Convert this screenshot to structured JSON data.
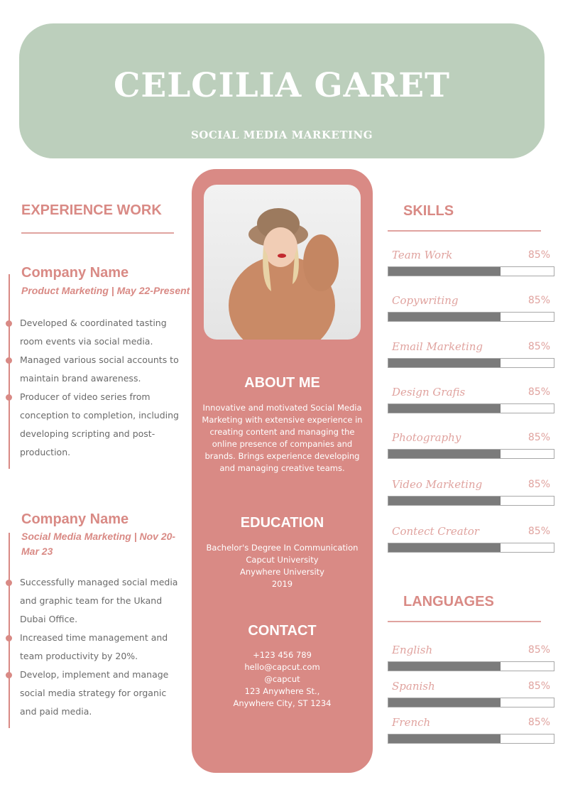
{
  "header": {
    "name": "CELCILIA GARET",
    "title": "SOCIAL MEDIA MARKETING"
  },
  "experience": {
    "heading": "EXPERIENCE WORK",
    "jobs": [
      {
        "company": "Company Name",
        "role": "Product Marketing | May 22-Present",
        "bullets": [
          "Developed & coordinated tasting room events via social media.",
          "Managed various social accounts to maintain brand awareness.",
          "Producer of video series from conception to completion, including developing scripting and post-production."
        ]
      },
      {
        "company": "Company Name",
        "role": "Social Media Marketing | Nov 20-Mar 23",
        "bullets": [
          "Successfully managed social media and graphic team for the Ukand Dubai Office.",
          "Increased time management and team productivity by 20%.",
          "Develop, implement and manage social media strategy for organic and paid media."
        ]
      }
    ]
  },
  "about": {
    "heading": "ABOUT ME",
    "text": "Innovative and motivated Social Media Marketing with extensive experience in creating content and managing the online presence of companies and brands. Brings experience developing and managing creative teams."
  },
  "education": {
    "heading": "EDUCATION",
    "lines": [
      "Bachelor's Degree In Communication",
      "Capcut University",
      "Anywhere University",
      "2019"
    ]
  },
  "contact": {
    "heading": "CONTACT",
    "lines": [
      "+123  456 789",
      "hello@capcut.com",
      "@capcut",
      "123 Anywhere St.,",
      "Anywhere City, ST 1234"
    ]
  },
  "skills": {
    "heading": "SKILLS",
    "items": [
      {
        "label": "Team Work",
        "value": "85%",
        "fill": 0.68
      },
      {
        "label": "Copywriting",
        "value": "85%",
        "fill": 0.68
      },
      {
        "label": "Email Marketing",
        "value": "85%",
        "fill": 0.68
      },
      {
        "label": "Design Grafis",
        "value": "85%",
        "fill": 0.68
      },
      {
        "label": "Photography",
        "value": "85%",
        "fill": 0.68
      },
      {
        "label": "Video Marketing",
        "value": "85%",
        "fill": 0.68
      },
      {
        "label": "Contect Creator",
        "value": "85%",
        "fill": 0.68
      }
    ]
  },
  "languages": {
    "heading": "LANGUAGES",
    "items": [
      {
        "label": "English",
        "value": "85%",
        "fill": 0.68
      },
      {
        "label": "Spanish",
        "value": "85%",
        "fill": 0.68
      },
      {
        "label": "French",
        "value": "85%",
        "fill": 0.68
      }
    ]
  },
  "colors": {
    "header": "#bccfbc",
    "accent": "#d98a85",
    "bar": "#7b7b7b"
  }
}
